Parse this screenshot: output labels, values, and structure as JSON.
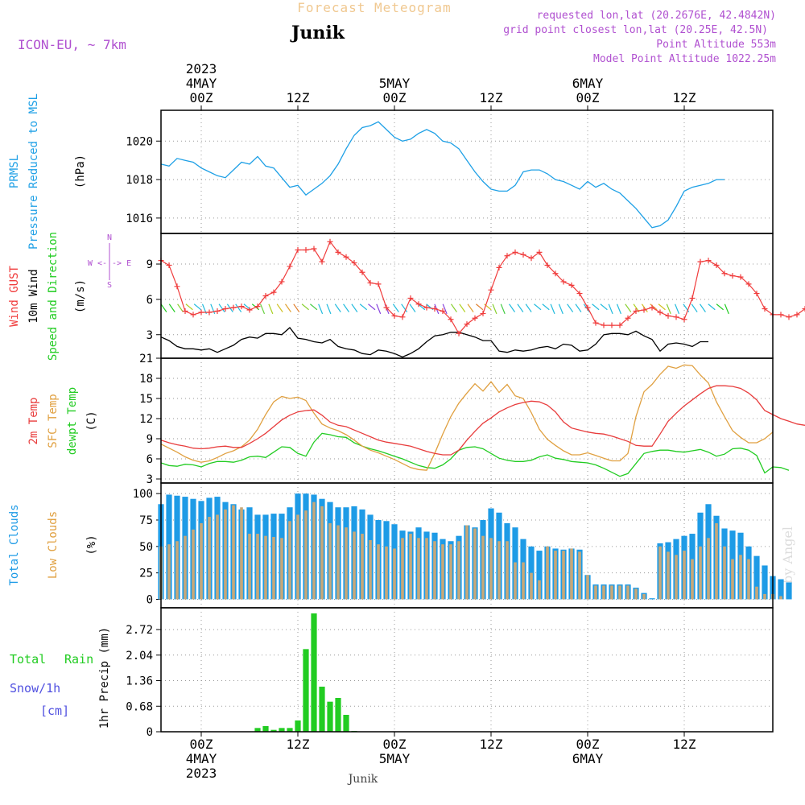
{
  "header": {
    "title": "Forecast Meteogram",
    "location": "Junik",
    "model": "ICON-EU, ~ 7km",
    "requested": "requested lon,lat (20.2676E, 42.4842N)",
    "grid": "grid point closest lon,lat (20.25E, 42.5N)",
    "altitude": "Point Altitude 553m",
    "model_altitude": "Model Point Altitude 1022.25m",
    "watermark": "by Angel",
    "footer": "Junik"
  },
  "time_axis": {
    "top": [
      {
        "h": 0,
        "lines": [
          "2023",
          "4MAY",
          "00Z"
        ]
      },
      {
        "h": 12,
        "lines": [
          "12Z"
        ]
      },
      {
        "h": 24,
        "lines": [
          "5MAY",
          "00Z"
        ]
      },
      {
        "h": 36,
        "lines": [
          "12Z"
        ]
      },
      {
        "h": 48,
        "lines": [
          "6MAY",
          "00Z"
        ]
      },
      {
        "h": 60,
        "lines": [
          "12Z"
        ]
      }
    ],
    "bottom": [
      {
        "h": 0,
        "lines": [
          "00Z",
          "4MAY",
          "2023"
        ]
      },
      {
        "h": 12,
        "lines": [
          "12Z"
        ]
      },
      {
        "h": 24,
        "lines": [
          "00Z",
          "5MAY"
        ]
      },
      {
        "h": 36,
        "lines": [
          "12Z"
        ]
      },
      {
        "h": 48,
        "lines": [
          "00Z",
          "6MAY"
        ]
      },
      {
        "h": 60,
        "lines": [
          "12Z"
        ]
      }
    ],
    "range_hours": [
      -5,
      71
    ]
  },
  "panel_labels": {
    "pressure": {
      "l1": "PRMSL",
      "l2": "Pressure Reduced to MSL",
      "unit": "(hPa)"
    },
    "wind": {
      "l1": "Wind GUST",
      "l2": "10m Wind",
      "l3": "Speed and Direction",
      "unit": "(m/s)",
      "compass_n": "N",
      "compass_s": "S",
      "compass_we": "W <-|-> E"
    },
    "temp": {
      "l1": "2m Temp",
      "l2": "SFC Temp",
      "l3": "dewpt Temp",
      "unit": "(C)"
    },
    "clouds": {
      "l1": "Total Clouds",
      "l2": "Low Clouds",
      "unit": "(%)"
    },
    "precip": {
      "l1": "Total",
      "l1b": "Rain",
      "l2": "Snow/1h",
      "l3": "[cm]",
      "unit": "1hr Precip (mm)"
    }
  },
  "colors": {
    "pressure": "#1ea0e6",
    "gust": "#f03c3c",
    "wind": "#000000",
    "t2m": "#e83c3c",
    "tsfc": "#e0a040",
    "dewpt": "#22cc22",
    "total_clouds": "#1e9be6",
    "low_clouds": "#c8a878",
    "rain": "#22cc22",
    "snow": "#5050e0",
    "purple": "#b050d0",
    "title_orange": "#f0c890"
  },
  "chart_data": [
    {
      "type": "line",
      "name": "pressure",
      "ylim": [
        1015.2,
        1021.6
      ],
      "yticks": [
        1016,
        1018,
        1020
      ],
      "x_start": -5,
      "step": 1,
      "series": [
        {
          "name": "PRMSL",
          "values": [
            1018.8,
            1018.7,
            1019.1,
            1019.0,
            1018.9,
            1018.6,
            1018.4,
            1018.2,
            1018.1,
            1018.5,
            1018.9,
            1018.8,
            1019.2,
            1018.7,
            1018.6,
            1018.1,
            1017.6,
            1017.7,
            1017.2,
            1017.5,
            1017.8,
            1018.2,
            1018.8,
            1019.6,
            1020.3,
            1020.7,
            1020.8,
            1021.0,
            1020.6,
            1020.2,
            1020.0,
            1020.1,
            1020.4,
            1020.6,
            1020.4,
            1020.0,
            1019.9,
            1019.6,
            1019.0,
            1018.4,
            1017.9,
            1017.5,
            1017.4,
            1017.4,
            1017.7,
            1018.4,
            1018.5,
            1018.5,
            1018.3,
            1018.0,
            1017.9,
            1017.7,
            1017.5,
            1017.9,
            1017.6,
            1017.8,
            1017.5,
            1017.3,
            1016.9,
            1016.5,
            1016.0,
            1015.5,
            1015.6,
            1015.9,
            1016.6,
            1017.4,
            1017.6,
            1017.7,
            1017.8,
            1018.0,
            1018.0
          ]
        }
      ]
    },
    {
      "type": "line",
      "name": "wind",
      "ylim": [
        1.0,
        11.6
      ],
      "yticks": [
        3,
        6,
        9
      ],
      "x_start": -5,
      "step": 1,
      "series": [
        {
          "name": "Wind GUST",
          "values": [
            9.3,
            8.9,
            7.1,
            5.0,
            4.7,
            4.9,
            4.9,
            5.0,
            5.2,
            5.3,
            5.4,
            5.1,
            5.4,
            6.3,
            6.6,
            7.5,
            8.8,
            10.2,
            10.2,
            10.3,
            9.2,
            10.9,
            10.0,
            9.6,
            9.1,
            8.3,
            7.4,
            7.3,
            5.3,
            4.6,
            4.5,
            6.1,
            5.6,
            5.3,
            5.2,
            5.0,
            4.3,
            3.1,
            3.9,
            4.4,
            4.8,
            6.8,
            8.7,
            9.7,
            10.0,
            9.8,
            9.5,
            10.0,
            8.9,
            8.2,
            7.5,
            7.2,
            6.5,
            5.3,
            4.0,
            3.8,
            3.8,
            3.8,
            4.4,
            5.0,
            5.1,
            5.3,
            4.9,
            4.6,
            4.5,
            4.3,
            6.1,
            9.2,
            9.3,
            8.9,
            8.2,
            8.0,
            7.9,
            7.3,
            6.5,
            5.2,
            4.7,
            4.7,
            4.5,
            4.7,
            5.2
          ]
        },
        {
          "name": "10m Wind",
          "values": [
            2.8,
            2.5,
            2.0,
            1.8,
            1.8,
            1.7,
            1.8,
            1.5,
            1.8,
            2.1,
            2.6,
            2.8,
            2.7,
            3.1,
            3.1,
            3.0,
            3.6,
            2.7,
            2.6,
            2.4,
            2.3,
            2.6,
            2.0,
            1.8,
            1.7,
            1.4,
            1.3,
            1.7,
            1.6,
            1.4,
            1.1,
            1.4,
            1.8,
            2.4,
            2.9,
            3.0,
            3.2,
            3.2,
            3.0,
            2.8,
            2.5,
            2.5,
            1.6,
            1.5,
            1.7,
            1.6,
            1.7,
            1.9,
            2.0,
            1.8,
            2.2,
            2.1,
            1.6,
            1.7,
            2.2,
            3.0,
            3.1,
            3.1,
            3.0,
            3.3,
            2.9,
            2.6,
            1.6,
            2.2,
            2.3,
            2.2,
            2.0,
            2.4,
            2.4
          ]
        }
      ],
      "barbs_y": 5.6,
      "arrow_colors": [
        "#22cc22",
        "#22cc22",
        "#88d030",
        "#b0d020",
        "#22bbdd",
        "#22bbdd",
        "#22bbdd",
        "#22bbdd",
        "#22bbdd",
        "#22bbdd",
        "#22bbdd",
        "#22cc22",
        "#66d040",
        "#a8d020",
        "#d0c020",
        "#e0a030",
        "#e08030",
        "#88d030",
        "#44cc44",
        "#22bbdd",
        "#22bbdd",
        "#22bbdd",
        "#22bbdd",
        "#22bbdd",
        "#22bbdd",
        "#8844dd",
        "#8844dd",
        "#8844dd",
        "#22bbdd",
        "#22bbdd",
        "#22bbdd",
        "#22bbdd",
        "#22bbdd",
        "#8844dd",
        "#8844dd",
        "#88d030",
        "#b0d020",
        "#e0a030",
        "#e08030",
        "#d0c020",
        "#88d030",
        "#44cc44",
        "#22bbdd",
        "#22bbdd",
        "#22bbdd",
        "#22bbdd",
        "#22bbdd",
        "#22bbdd",
        "#22bbdd",
        "#22bbdd",
        "#22bbdd",
        "#22bbdd",
        "#22bbdd",
        "#22bbdd",
        "#22bbdd",
        "#22bbdd",
        "#88d030",
        "#b0d020",
        "#d0c020",
        "#e0a030",
        "#d0c020",
        "#88d030",
        "#22bbdd",
        "#22bbdd",
        "#22bbdd",
        "#22bbdd",
        "#22bbdd",
        "#22cc22",
        "#22cc22"
      ]
    },
    {
      "type": "line",
      "name": "temperature",
      "ylim": [
        2.4,
        21
      ],
      "yticks": [
        3,
        6,
        9,
        12,
        15,
        18,
        21
      ],
      "x_start": -5,
      "step": 1,
      "series": [
        {
          "name": "2m Temp",
          "values": [
            8.8,
            8.4,
            8.1,
            7.9,
            7.6,
            7.5,
            7.6,
            7.8,
            7.9,
            7.7,
            7.7,
            8.3,
            9.0,
            9.8,
            10.8,
            11.8,
            12.5,
            13.0,
            13.2,
            13.3,
            12.5,
            11.5,
            11.0,
            10.8,
            10.3,
            9.8,
            9.3,
            8.8,
            8.5,
            8.3,
            8.1,
            7.9,
            7.5,
            7.1,
            6.8,
            6.6,
            6.6,
            7.3,
            8.8,
            10.1,
            11.3,
            12.1,
            13.0,
            13.6,
            14.1,
            14.4,
            14.6,
            14.5,
            14.0,
            13.0,
            11.5,
            10.6,
            10.3,
            10.0,
            9.8,
            9.7,
            9.4,
            9.0,
            8.6,
            8.0,
            7.9,
            7.9,
            9.7,
            11.6,
            12.8,
            13.9,
            14.8,
            15.7,
            16.5,
            16.9,
            16.9,
            16.8,
            16.5,
            15.8,
            14.8,
            13.2,
            12.6,
            12.0,
            11.6,
            11.2,
            11.0
          ]
        },
        {
          "name": "SFC Temp",
          "values": [
            8.2,
            7.6,
            7.0,
            6.3,
            5.8,
            5.5,
            5.7,
            6.2,
            6.8,
            7.2,
            7.8,
            8.8,
            10.4,
            12.6,
            14.5,
            15.3,
            15.0,
            15.2,
            14.7,
            12.8,
            11.2,
            10.6,
            10.2,
            9.6,
            8.8,
            7.9,
            7.3,
            6.9,
            6.4,
            5.9,
            5.3,
            4.7,
            4.4,
            4.3,
            6.8,
            9.7,
            12.3,
            14.3,
            15.8,
            17.2,
            16.1,
            17.5,
            15.9,
            17.1,
            15.4,
            15.0,
            12.9,
            10.4,
            8.9,
            8.0,
            7.2,
            6.6,
            6.6,
            6.9,
            6.5,
            6.1,
            5.7,
            5.7,
            6.8,
            12.3,
            16.0,
            17.1,
            18.6,
            19.8,
            19.5,
            20.0,
            19.9,
            18.5,
            17.3,
            14.5,
            12.3,
            10.2,
            9.2,
            8.4,
            8.4,
            9.0,
            10.0
          ]
        },
        {
          "name": "dewpt Temp",
          "values": [
            5.4,
            5.0,
            4.9,
            5.2,
            5.1,
            4.8,
            5.3,
            5.6,
            5.6,
            5.5,
            5.8,
            6.3,
            6.4,
            6.2,
            7.0,
            7.8,
            7.7,
            6.8,
            6.4,
            8.5,
            9.8,
            9.6,
            9.3,
            9.2,
            8.4,
            7.9,
            7.5,
            7.2,
            6.8,
            6.4,
            6.0,
            5.5,
            5.0,
            4.7,
            4.6,
            5.1,
            6.0,
            7.3,
            7.7,
            7.8,
            7.5,
            6.8,
            6.1,
            5.8,
            5.6,
            5.6,
            5.8,
            6.3,
            6.6,
            6.1,
            5.9,
            5.6,
            5.5,
            5.4,
            5.1,
            4.6,
            4.0,
            3.4,
            3.8,
            5.3,
            6.8,
            7.1,
            7.3,
            7.3,
            7.1,
            7.0,
            7.2,
            7.4,
            7.0,
            6.4,
            6.7,
            7.5,
            7.6,
            7.3,
            6.5,
            3.9,
            4.8,
            4.7,
            4.3
          ]
        }
      ]
    },
    {
      "type": "bar",
      "name": "clouds",
      "ylim": [
        -8,
        110
      ],
      "yticks": [
        0,
        25,
        50,
        75,
        100
      ],
      "x_start": -5,
      "step": 1,
      "series": [
        {
          "name": "Total Clouds",
          "values": [
            90,
            99,
            98,
            97,
            95,
            93,
            96,
            97,
            92,
            90,
            85,
            87,
            80,
            80,
            81,
            81,
            87,
            100,
            100,
            99,
            95,
            92,
            87,
            87,
            88,
            85,
            80,
            75,
            74,
            71,
            65,
            64,
            68,
            64,
            63,
            57,
            55,
            60,
            70,
            68,
            75,
            86,
            82,
            72,
            68,
            57,
            50,
            46,
            50,
            48,
            47,
            48,
            47,
            23,
            14,
            14,
            14,
            14,
            14,
            11,
            6,
            1,
            53,
            54,
            57,
            60,
            62,
            82,
            90,
            79,
            67,
            65,
            63,
            50,
            41,
            32,
            22,
            19,
            16
          ]
        },
        {
          "name": "Low Clouds",
          "values": [
            50,
            52,
            55,
            60,
            66,
            72,
            78,
            80,
            85,
            89,
            87,
            62,
            62,
            60,
            59,
            58,
            74,
            80,
            84,
            92,
            88,
            72,
            70,
            68,
            64,
            62,
            56,
            52,
            50,
            48,
            58,
            62,
            58,
            58,
            55,
            52,
            52,
            55,
            70,
            67,
            60,
            58,
            55,
            55,
            35,
            35,
            25,
            18,
            50,
            46,
            46,
            48,
            45,
            23,
            13,
            13,
            13,
            13,
            13,
            10,
            5,
            0,
            50,
            45,
            42,
            46,
            38,
            50,
            58,
            72,
            50,
            38,
            42,
            38,
            12,
            5,
            5,
            3,
            0
          ]
        }
      ]
    },
    {
      "type": "bar",
      "name": "precipitation",
      "ylim": [
        0,
        3.3
      ],
      "yticks": [
        0,
        0.68,
        1.36,
        2.04,
        2.72
      ],
      "ytick_labels": [
        "0",
        "0.68",
        "1.36",
        "2.04",
        "2.72"
      ],
      "x_start": 7,
      "step": 1,
      "series": [
        {
          "name": "Total Rain",
          "values": [
            0.1,
            0.15,
            0.05,
            0.1,
            0.1,
            0.3,
            2.2,
            3.15,
            1.2,
            0.8,
            0.9,
            0.45,
            0.02
          ]
        }
      ]
    }
  ]
}
